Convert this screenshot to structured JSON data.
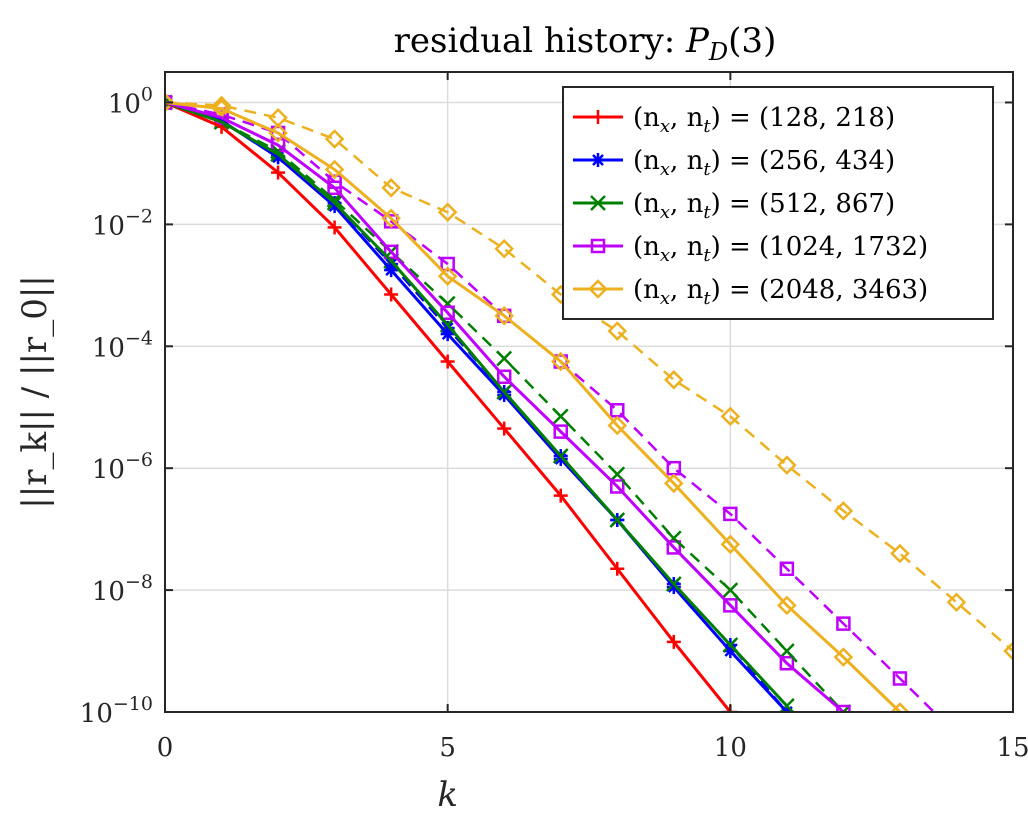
{
  "chart_data": {
    "type": "line",
    "y_scale": "log",
    "title_prefix": "residual history: ",
    "title_symbol": "P",
    "title_subscript": "D",
    "title_suffix": "(3)",
    "xlabel": "k",
    "ylabel": "||r_k|| / ||r_0||",
    "xlim": [
      0,
      15
    ],
    "ylim_exp": [
      -10,
      0.5
    ],
    "grid": true,
    "legend_position": "top-right",
    "x_ticks": [
      0,
      5,
      10,
      15
    ],
    "x_tick_labels": [
      "0",
      "5",
      "10",
      "15"
    ],
    "y_ticks_exp": [
      0,
      -2,
      -4,
      -6,
      -8,
      -10
    ],
    "y_tick_base": "10",
    "y_tick_exponents": [
      "0",
      "−2",
      "−4",
      "−6",
      "−8",
      "−10"
    ],
    "series": [
      {
        "name": "(n_x, n_t) = (128, 218)",
        "legend_left": "(n",
        "legend_mid": ", n",
        "legend_right": ") = (128, 218)",
        "color": "#ff0000",
        "marker": "plus",
        "solid_x": [
          0,
          1,
          2,
          3,
          4,
          5,
          6,
          7,
          8,
          9,
          10
        ],
        "solid_y_exp": [
          0,
          -0.4,
          -1.15,
          -2.05,
          -3.15,
          -4.25,
          -5.35,
          -6.45,
          -7.65,
          -8.85,
          -10.0
        ],
        "dashed_x": [],
        "dashed_y_exp": []
      },
      {
        "name": "(n_x, n_t) = (256, 434)",
        "legend_left": "(n",
        "legend_mid": ", n",
        "legend_right": ") = (256, 434)",
        "color": "#0000ff",
        "marker": "star",
        "solid_x": [
          0,
          1,
          2,
          3,
          4,
          5,
          6,
          7,
          8,
          9,
          10,
          11
        ],
        "solid_y_exp": [
          0,
          -0.3,
          -0.9,
          -1.7,
          -2.75,
          -3.8,
          -4.8,
          -5.85,
          -6.85,
          -7.95,
          -9.0,
          -10.0
        ],
        "dashed_x": [
          0,
          1,
          2,
          3,
          4,
          5,
          6,
          7,
          8,
          9,
          10,
          11
        ],
        "dashed_y_exp": [
          0,
          -0.3,
          -0.88,
          -1.65,
          -2.65,
          -3.7,
          -4.75,
          -5.8,
          -6.85,
          -7.9,
          -8.9,
          -10.0
        ]
      },
      {
        "name": "(n_x, n_t) = (512, 867)",
        "legend_left": "(n",
        "legend_mid": ", n",
        "legend_right": ") = (512, 867)",
        "color": "#008000",
        "marker": "x",
        "solid_x": [
          0,
          1,
          2,
          3,
          4,
          5,
          6,
          7,
          8,
          9,
          10,
          11
        ],
        "solid_y_exp": [
          0,
          -0.32,
          -0.85,
          -1.65,
          -2.6,
          -3.65,
          -4.75,
          -5.8,
          -6.85,
          -7.9,
          -8.9,
          -9.9
        ],
        "dashed_x": [
          0,
          1,
          2,
          3,
          4,
          5,
          6,
          7,
          8,
          9,
          10,
          11,
          12
        ],
        "dashed_y_exp": [
          0,
          -0.32,
          -0.8,
          -1.6,
          -2.45,
          -3.3,
          -4.2,
          -5.15,
          -6.1,
          -7.15,
          -8.0,
          -9.0,
          -10.0
        ]
      },
      {
        "name": "(n_x, n_t) = (1024, 1732)",
        "legend_left": "(n",
        "legend_mid": ", n",
        "legend_right": ") = (1024, 1732)",
        "color": "#bf00ff",
        "marker": "square",
        "solid_x": [
          0,
          1,
          2,
          3,
          4,
          5,
          6,
          7,
          8,
          9,
          10,
          11,
          12
        ],
        "solid_y_exp": [
          0,
          -0.25,
          -0.7,
          -1.4,
          -2.45,
          -3.45,
          -4.5,
          -5.4,
          -6.3,
          -7.3,
          -8.25,
          -9.2,
          -10.0
        ],
        "dashed_x": [
          0,
          1,
          2,
          3,
          4,
          5,
          6,
          7,
          8,
          9,
          10,
          11,
          12,
          13,
          13.6
        ],
        "dashed_y_exp": [
          0,
          -0.2,
          -0.5,
          -1.3,
          -1.95,
          -2.65,
          -3.5,
          -4.25,
          -5.05,
          -6.0,
          -6.75,
          -7.65,
          -8.55,
          -9.45,
          -10.0
        ]
      },
      {
        "name": "(n_x, n_t) = (2048, 3463)",
        "legend_left": "(n",
        "legend_mid": ", n",
        "legend_right": ") = (2048, 3463)",
        "color": "#edb120",
        "marker": "diamond",
        "solid_x": [
          0,
          1,
          2,
          3,
          4,
          5,
          6,
          7,
          8,
          9,
          10,
          11,
          12,
          13
        ],
        "solid_y_exp": [
          0,
          -0.1,
          -0.5,
          -1.1,
          -1.9,
          -2.85,
          -3.5,
          -4.25,
          -5.3,
          -6.25,
          -7.25,
          -8.25,
          -9.1,
          -10.0
        ],
        "dashed_x": [
          0,
          1,
          2,
          3,
          4,
          5,
          6,
          7,
          8,
          9,
          10,
          11,
          12,
          13,
          14,
          15
        ],
        "dashed_y_exp": [
          0,
          -0.05,
          -0.25,
          -0.6,
          -1.4,
          -1.8,
          -2.4,
          -3.15,
          -3.75,
          -4.55,
          -5.15,
          -5.95,
          -6.7,
          -7.4,
          -8.2,
          -9.0
        ]
      }
    ]
  }
}
